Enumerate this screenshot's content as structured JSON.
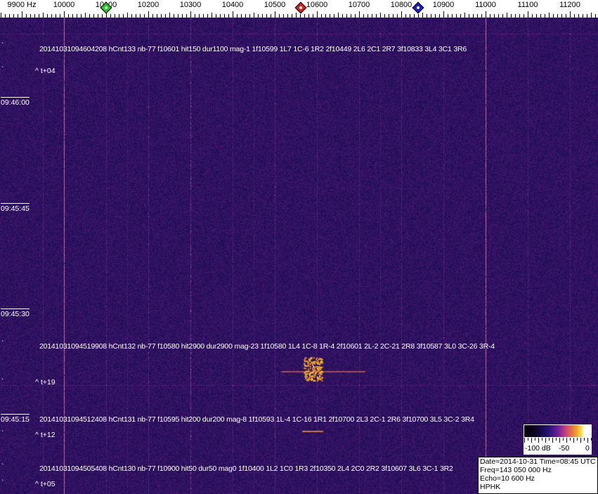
{
  "axis": {
    "unit_label": "9900 Hz",
    "ticks": [
      "10000",
      "10100",
      "10200",
      "10300",
      "10400",
      "10500",
      "10600",
      "10700",
      "10800",
      "10900",
      "11000",
      "11100",
      "11200"
    ],
    "tick_values": [
      9900,
      10000,
      10100,
      10200,
      10300,
      10400,
      10500,
      10600,
      10700,
      10800,
      10900,
      11000,
      11100,
      11200
    ]
  },
  "markers": [
    {
      "name": "green-marker",
      "freq": 10100,
      "color": "#22c422"
    },
    {
      "name": "red-marker",
      "freq": 10562,
      "color": "#d42020"
    },
    {
      "name": "blue-marker",
      "freq": 10840,
      "color": "#1c1cc8"
    }
  ],
  "time_labels": [
    "09:46:00",
    "09:45:45",
    "09:45:30",
    "09:45:15"
  ],
  "annotations": [
    {
      "text": "20141031094604208 hCnt133 nb-77 f10601 hit150 dur1100 mag-1 1f10599 1L7 1C-6 1R2 2f10449 2L6 2C1 2R7 3f10833 3L4 3C1 3R6",
      "offset": "^ t+04"
    },
    {
      "text": "20141031094519908 hCnt132 nb-77 f10580 hit2900 dur2900 mag-23 1f10580 1L4 1C-8 1R-4 2f10601 2L-2 2C-21 2R8 3f10587 3L0 3C-26 3R-4",
      "offset": "^ t+19"
    },
    {
      "text": "20141031094512408 hCnt131 nb-77 f10595 hit200 dur200 mag-8 1f10593 1L-4 1C-16 1R1 2f10700 2L3 2C-1 2R6 3f10700 3L5 3C-2 3R4",
      "offset": "^ t+12"
    },
    {
      "text": "20141031094505408 hCnt130 nb-77 f10900 hit50 dur50 mag0 1f10400 1L2 1C0 1R3 2f10350 2L4 2C0 2R2 3f10607 3L6 3C-1 3R2",
      "offset": "^ t+05"
    }
  ],
  "colorbar": {
    "labels": [
      "-100 dB",
      "-50",
      "0"
    ]
  },
  "info": {
    "date_time": "Date=2014-10-31 Time=08:45 UTC",
    "freq": "Freq=143 050 000 Hz",
    "echo": "Echo=10 600 Hz",
    "station": "HPHK"
  },
  "colors": {
    "background": "#1e1560",
    "carrier_line": "#c8406a",
    "echo": "#ffc020"
  }
}
